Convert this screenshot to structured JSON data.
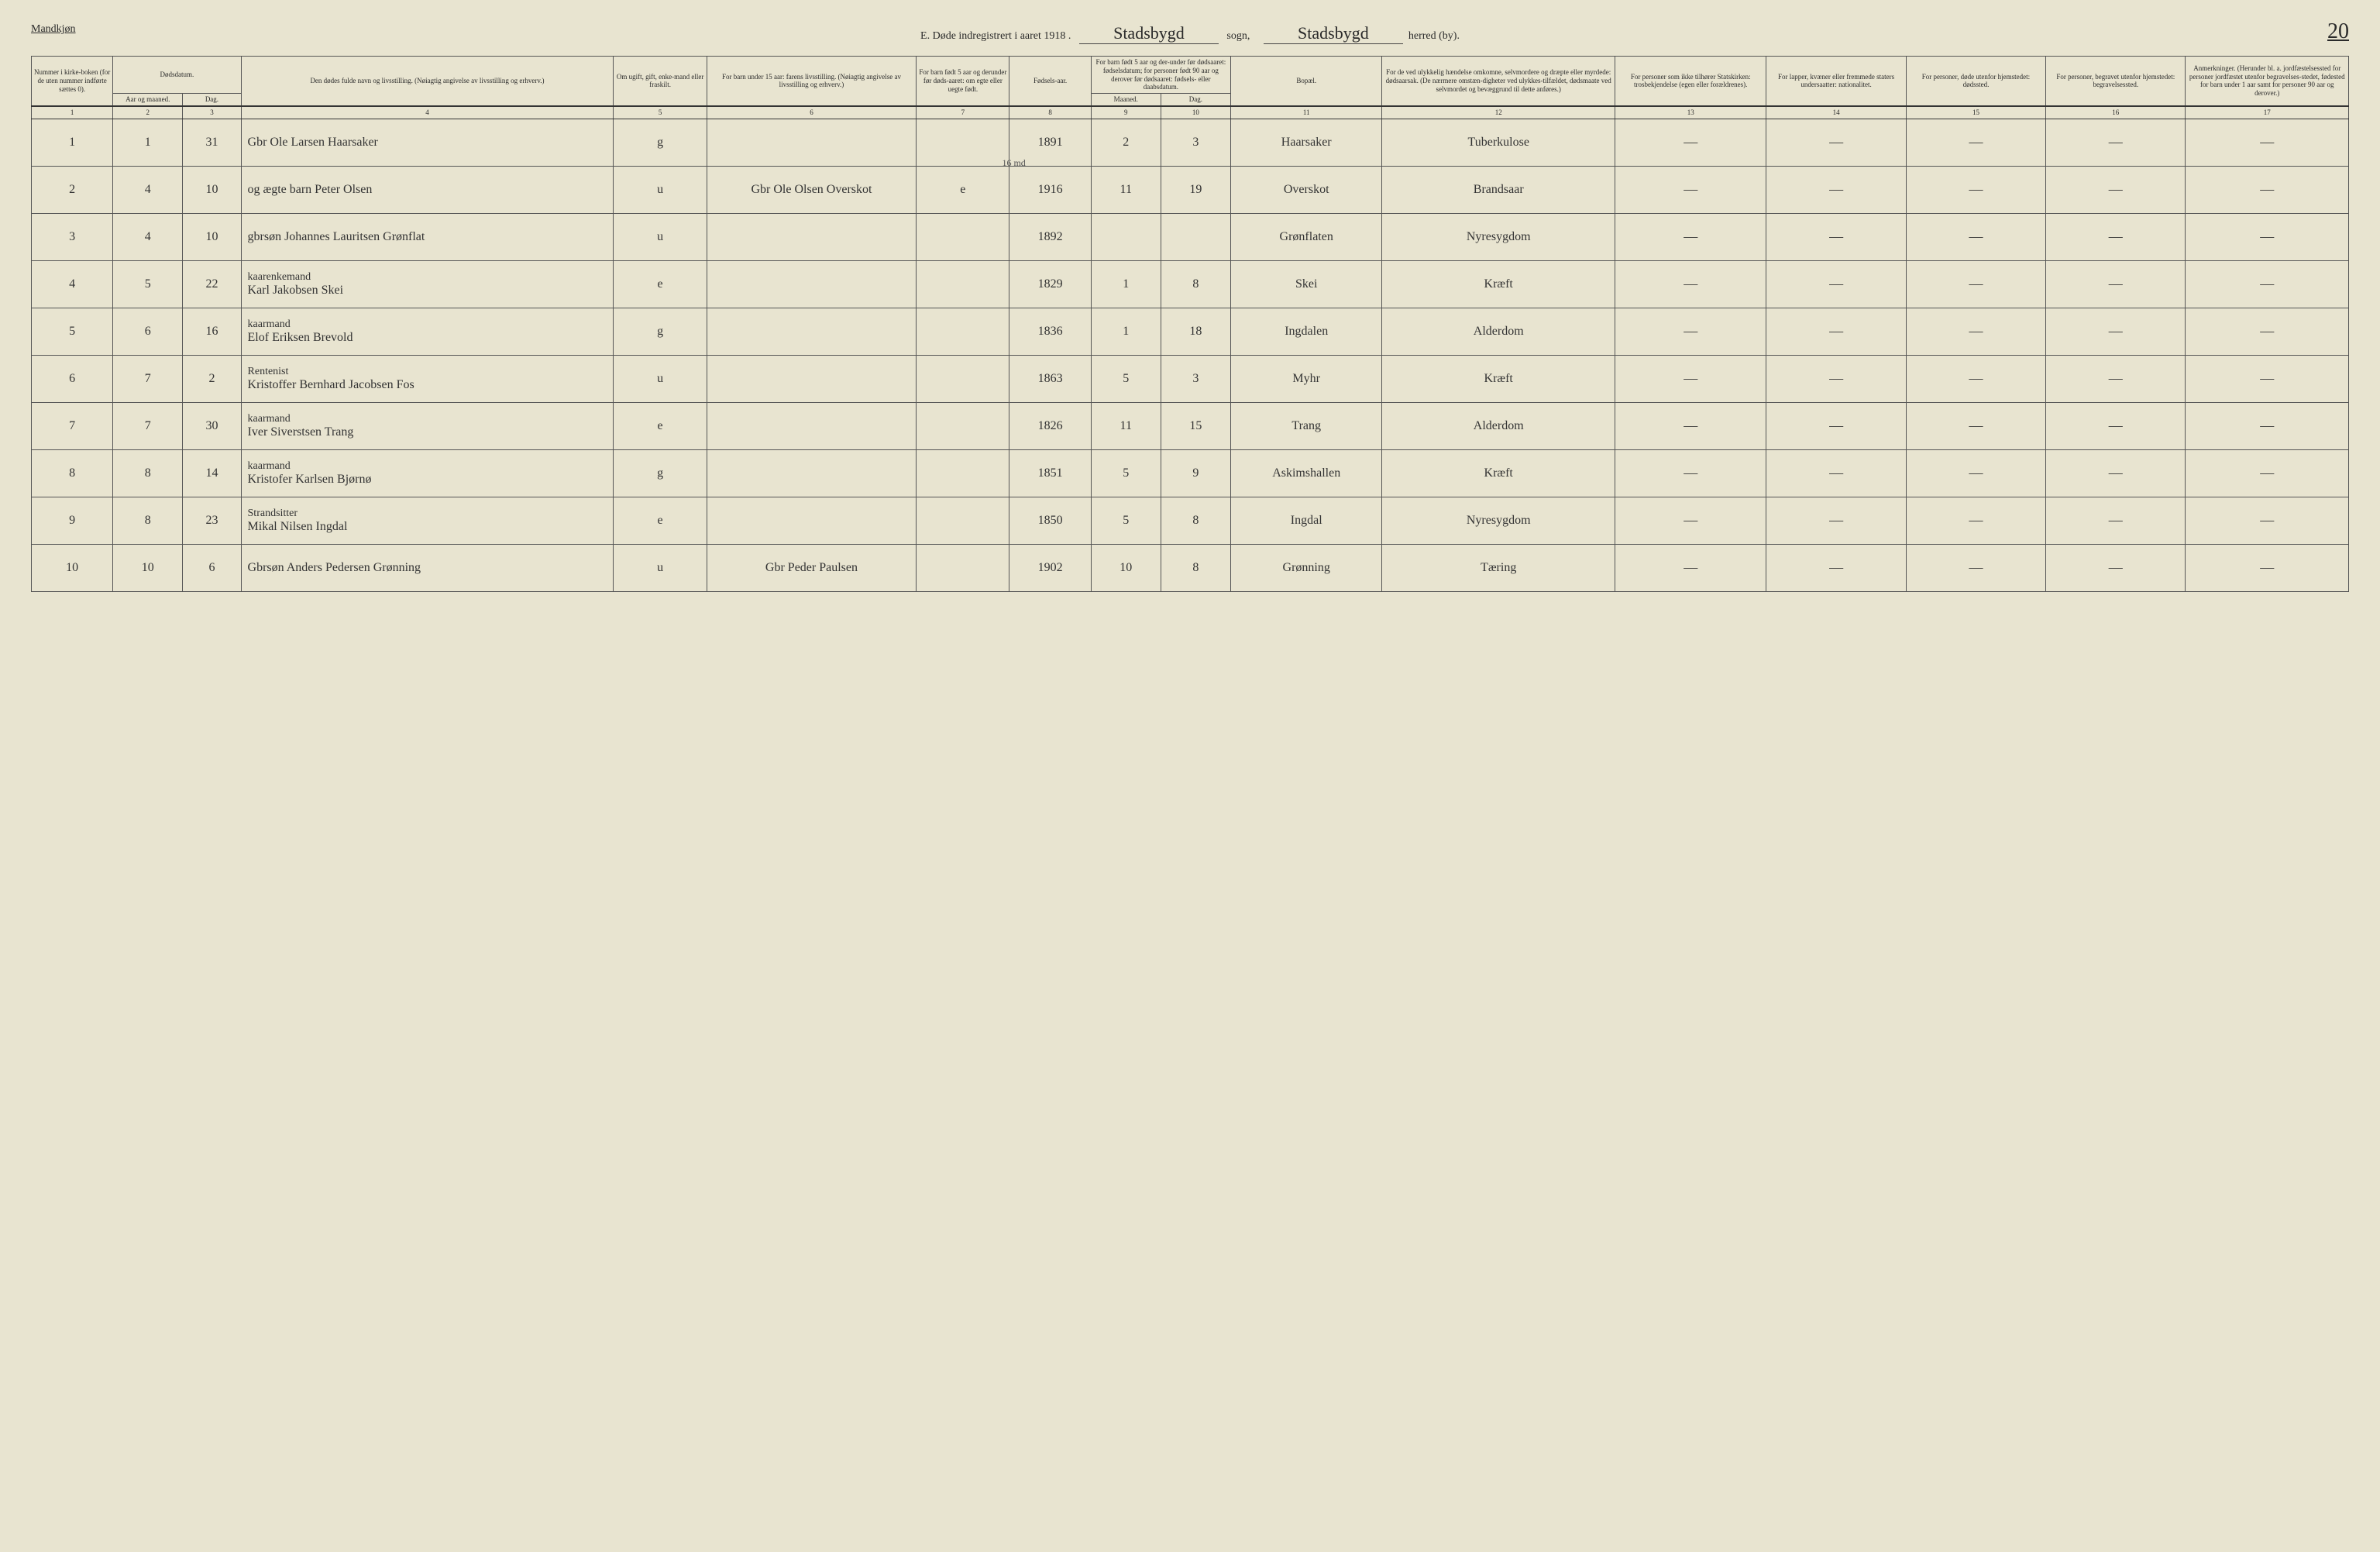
{
  "header": {
    "gender": "Mandkjøn",
    "title_prefix": "E.  Døde indregistrert i aaret 191",
    "year_suffix": "8",
    "sogn_label": "sogn,",
    "sogn_value": "Stadsbygd",
    "herred_label": "herred (by).",
    "herred_value": "Stadsbygd",
    "page_number": "20"
  },
  "columns": {
    "c1": "Nummer i kirke-boken (for de uten nummer indførte sættes 0).",
    "c2_3_group": "Dødsdatum.",
    "c2": "Aar og maaned.",
    "c3": "Dag.",
    "c4": "Den dødes fulde navn og livsstilling.\n(Nøiagtig angivelse av livsstilling og erhverv.)",
    "c5": "Om ugift, gift, enke-mand eller fraskilt.",
    "c6": "For barn under 15 aar: farens livsstilling.\n(Nøiagtig angivelse av livsstilling og erhverv.)",
    "c7": "For barn født 5 aar og derunder før døds-aaret: om egte eller uegte født.",
    "c8": "Fødsels-aar.",
    "c9_10_group": "For barn født 5 aar og der-under før dødsaaret: fødselsdatum; for personer født 90 aar og derover før dødsaaret: fødsels- eller daabsdatum.",
    "c9": "Maaned.",
    "c10": "Dag.",
    "c11": "Bopæl.",
    "c12": "For de ved ulykkelig hændelse omkomne, selvmordere og dræpte eller myrdede: dødsaarsak.\n(De nærmere omstæn-digheter ved ulykkes-tilfældet, dødsmaate ved selvmordet og bevæggrund til dette anføres.)",
    "c13": "For personer som ikke tilhører Statskirken: trosbekjendelse (egen eller forældrenes).",
    "c14": "For lapper, kvæner eller fremmede staters undersaatter: nationalitet.",
    "c15": "For personer, døde utenfor hjemstedet: dødssted.",
    "c16": "For personer, begravet utenfor hjemstedet: begravelsessted.",
    "c17": "Anmerkninger.\n(Herunder bl. a. jordfæstelsessted for personer jordfæstet utenfor begravelses-stedet, fødested for barn under 1 aar samt for personer 90 aar og derover.)"
  },
  "col_numbers": [
    "1",
    "2",
    "3",
    "4",
    "5",
    "6",
    "7",
    "8",
    "9",
    "10",
    "11",
    "12",
    "13",
    "14",
    "15",
    "16",
    "17"
  ],
  "col_widths": [
    3.5,
    3,
    2.5,
    16,
    4,
    9,
    4,
    3.5,
    3,
    3,
    6.5,
    10,
    6.5,
    6,
    6,
    6,
    7
  ],
  "rows": [
    {
      "num": "1",
      "month": "1",
      "day": "31",
      "name": "Gbr Ole Larsen Haarsaker",
      "status": "g",
      "father": "",
      "egte": "",
      "birth": "1891",
      "bm": "2",
      "bd": "3",
      "place": "Haarsaker",
      "cause": "Tuberkulose"
    },
    {
      "num": "2",
      "month": "4",
      "day": "10",
      "occupation": "",
      "name": "og ægte barn Peter Olsen",
      "status": "u",
      "father": "Gbr Ole Olsen Overskot",
      "egte": "e",
      "birth": "1916",
      "bm": "11",
      "bd": "19",
      "place": "Overskot",
      "cause": "Brandsaar",
      "note": "16 md"
    },
    {
      "num": "3",
      "month": "4",
      "day": "10",
      "occupation": "",
      "name": "gbrsøn Johannes Lauritsen Grønflat",
      "status": "u",
      "father": "",
      "egte": "",
      "birth": "1892",
      "bm": "",
      "bd": "",
      "place": "Grønflaten",
      "cause": "Nyresygdom"
    },
    {
      "num": "4",
      "month": "5",
      "day": "22",
      "occupation": "kaarenkemand",
      "name": "Karl Jakobsen Skei",
      "status": "e",
      "father": "",
      "egte": "",
      "birth": "1829",
      "bm": "1",
      "bd": "8",
      "place": "Skei",
      "cause": "Kræft"
    },
    {
      "num": "5",
      "month": "6",
      "day": "16",
      "occupation": "kaarmand",
      "name": "Elof Eriksen Brevold",
      "status": "g",
      "father": "",
      "egte": "",
      "birth": "1836",
      "bm": "1",
      "bd": "18",
      "place": "Ingdalen",
      "cause": "Alderdom"
    },
    {
      "num": "6",
      "month": "7",
      "day": "2",
      "occupation": "Rentenist",
      "name": "Kristoffer Bernhard Jacobsen Fos",
      "status": "u",
      "father": "",
      "egte": "",
      "birth": "1863",
      "bm": "5",
      "bd": "3",
      "place": "Myhr",
      "cause": "Kræft"
    },
    {
      "num": "7",
      "month": "7",
      "day": "30",
      "occupation": "kaarmand",
      "name": "Iver Siverstsen Trang",
      "status": "e",
      "father": "",
      "egte": "",
      "birth": "1826",
      "bm": "11",
      "bd": "15",
      "place": "Trang",
      "cause": "Alderdom"
    },
    {
      "num": "8",
      "month": "8",
      "day": "14",
      "occupation": "kaarmand",
      "name": "Kristofer Karlsen Bjørnø",
      "status": "g",
      "father": "",
      "egte": "",
      "birth": "1851",
      "bm": "5",
      "bd": "9",
      "place": "Askimshallen",
      "cause": "Kræft"
    },
    {
      "num": "9",
      "month": "8",
      "day": "23",
      "occupation": "Strandsitter",
      "name": "Mikal Nilsen Ingdal",
      "status": "e",
      "father": "",
      "egte": "",
      "birth": "1850",
      "bm": "5",
      "bd": "8",
      "place": "Ingdal",
      "cause": "Nyresygdom"
    },
    {
      "num": "10",
      "month": "10",
      "day": "6",
      "occupation": "",
      "name": "Gbrsøn Anders Pedersen Grønning",
      "status": "u",
      "father": "Gbr Peder Paulsen",
      "egte": "",
      "birth": "1902",
      "bm": "10",
      "bd": "8",
      "place": "Grønning",
      "cause": "Tæring"
    }
  ],
  "styling": {
    "background_color": "#e8e4d0",
    "border_color": "#555555",
    "text_color": "#2a2a2a",
    "handwriting_color": "#333333",
    "header_font_size": 14,
    "cell_font_size": 9,
    "handwriting_font_size": 16
  }
}
